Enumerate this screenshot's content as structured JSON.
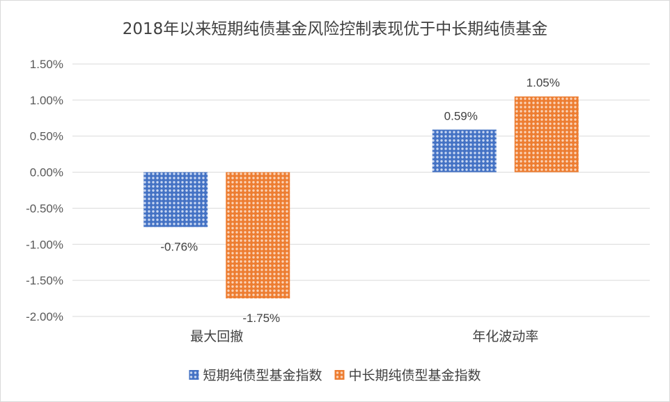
{
  "chart_data": {
    "type": "bar",
    "title": "2018年以来短期纯债基金风险控制表现优于中长期纯债基金",
    "categories": [
      "最大回撤",
      "年化波动率"
    ],
    "series": [
      {
        "name": "短期纯债型基金指数",
        "values": [
          -0.76,
          0.59
        ],
        "labels": [
          "-0.76%",
          "0.59%"
        ],
        "color": "#4472c4",
        "pattern": "dots"
      },
      {
        "name": "中长期纯债型基金指数",
        "values": [
          -1.75,
          1.05
        ],
        "labels": [
          "-1.75%",
          "1.05%"
        ],
        "color": "#ed7d31",
        "pattern": "dots"
      }
    ],
    "ylim": [
      -2.0,
      1.5
    ],
    "yticks": [
      1.5,
      1.0,
      0.5,
      0.0,
      -0.5,
      -1.0,
      -1.5,
      -2.0
    ],
    "ytick_labels": [
      "1.50%",
      "1.00%",
      "0.50%",
      "0.00%",
      "-0.50%",
      "-1.00%",
      "-1.50%",
      "-2.00%"
    ],
    "xlabel": "",
    "ylabel": "",
    "grid": true,
    "legend_position": "bottom"
  }
}
